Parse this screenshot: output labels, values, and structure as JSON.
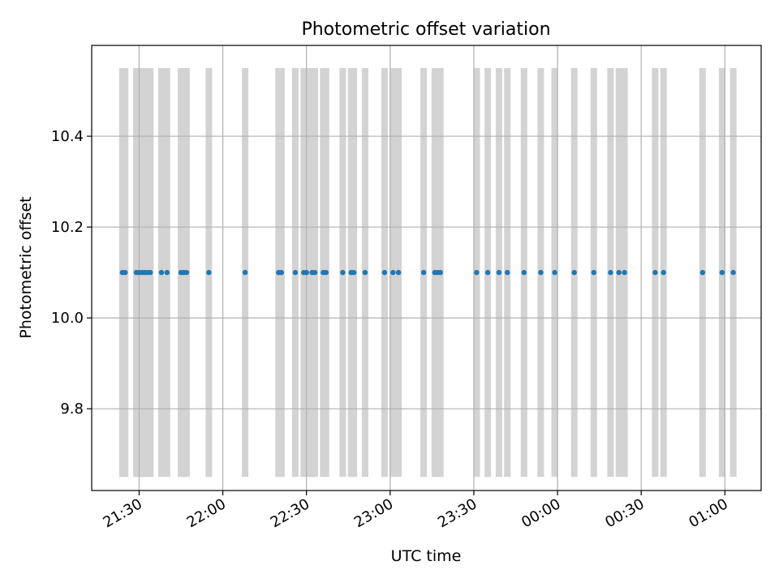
{
  "chart_data": {
    "type": "scatter",
    "title": "Photometric offset variation",
    "xlabel": "UTC time",
    "ylabel": "Photometric offset",
    "xlim": [
      "21:13",
      "01:13"
    ],
    "ylim": [
      9.62,
      10.6
    ],
    "grid": true,
    "band_range": [
      9.65,
      10.55
    ],
    "x_ticks": [
      {
        "label": "21:30",
        "time": "21:30"
      },
      {
        "label": "22:00",
        "time": "22:00"
      },
      {
        "label": "22:30",
        "time": "22:30"
      },
      {
        "label": "23:00",
        "time": "23:00"
      },
      {
        "label": "23:30",
        "time": "23:30"
      },
      {
        "label": "00:00",
        "time": "00:00"
      },
      {
        "label": "00:30",
        "time": "00:30"
      },
      {
        "label": "01:00",
        "time": "01:00"
      }
    ],
    "y_ticks": [
      {
        "label": "9.8",
        "value": 9.8
      },
      {
        "label": "10.0",
        "value": 10.0
      },
      {
        "label": "10.2",
        "value": 10.2
      },
      {
        "label": "10.4",
        "value": 10.4
      }
    ],
    "series": [
      {
        "marker_color": "#1f77b4",
        "band_color": "#d3d3d3",
        "points": [
          {
            "x": "21:24",
            "y": 10.1
          },
          {
            "x": "21:25",
            "y": 10.1
          },
          {
            "x": "21:29",
            "y": 10.1
          },
          {
            "x": "21:30",
            "y": 10.1
          },
          {
            "x": "21:31",
            "y": 10.1
          },
          {
            "x": "21:32",
            "y": 10.1
          },
          {
            "x": "21:33",
            "y": 10.1
          },
          {
            "x": "21:34",
            "y": 10.1
          },
          {
            "x": "21:38",
            "y": 10.1
          },
          {
            "x": "21:40",
            "y": 10.1
          },
          {
            "x": "21:45",
            "y": 10.1
          },
          {
            "x": "21:46",
            "y": 10.1
          },
          {
            "x": "21:47",
            "y": 10.1
          },
          {
            "x": "21:55",
            "y": 10.1
          },
          {
            "x": "22:08",
            "y": 10.1
          },
          {
            "x": "22:20",
            "y": 10.1
          },
          {
            "x": "22:21",
            "y": 10.1
          },
          {
            "x": "22:26",
            "y": 10.1
          },
          {
            "x": "22:29",
            "y": 10.1
          },
          {
            "x": "22:30",
            "y": 10.1
          },
          {
            "x": "22:32",
            "y": 10.1
          },
          {
            "x": "22:33",
            "y": 10.1
          },
          {
            "x": "22:36",
            "y": 10.1
          },
          {
            "x": "22:37",
            "y": 10.1
          },
          {
            "x": "22:43",
            "y": 10.1
          },
          {
            "x": "22:46",
            "y": 10.1
          },
          {
            "x": "22:47",
            "y": 10.1
          },
          {
            "x": "22:51",
            "y": 10.1
          },
          {
            "x": "22:58",
            "y": 10.1
          },
          {
            "x": "23:01",
            "y": 10.1
          },
          {
            "x": "23:03",
            "y": 10.1
          },
          {
            "x": "23:12",
            "y": 10.1
          },
          {
            "x": "23:16",
            "y": 10.1
          },
          {
            "x": "23:17",
            "y": 10.1
          },
          {
            "x": "23:18",
            "y": 10.1
          },
          {
            "x": "23:31",
            "y": 10.1
          },
          {
            "x": "23:35",
            "y": 10.1
          },
          {
            "x": "23:39",
            "y": 10.1
          },
          {
            "x": "23:42",
            "y": 10.1
          },
          {
            "x": "23:48",
            "y": 10.1
          },
          {
            "x": "23:54",
            "y": 10.1
          },
          {
            "x": "23:59",
            "y": 10.1
          },
          {
            "x": "00:06",
            "y": 10.1
          },
          {
            "x": "00:13",
            "y": 10.1
          },
          {
            "x": "00:19",
            "y": 10.1
          },
          {
            "x": "00:22",
            "y": 10.1
          },
          {
            "x": "00:24",
            "y": 10.1
          },
          {
            "x": "00:35",
            "y": 10.1
          },
          {
            "x": "00:38",
            "y": 10.1
          },
          {
            "x": "00:52",
            "y": 10.1
          },
          {
            "x": "00:59",
            "y": 10.1
          },
          {
            "x": "01:03",
            "y": 10.1
          }
        ]
      }
    ]
  }
}
